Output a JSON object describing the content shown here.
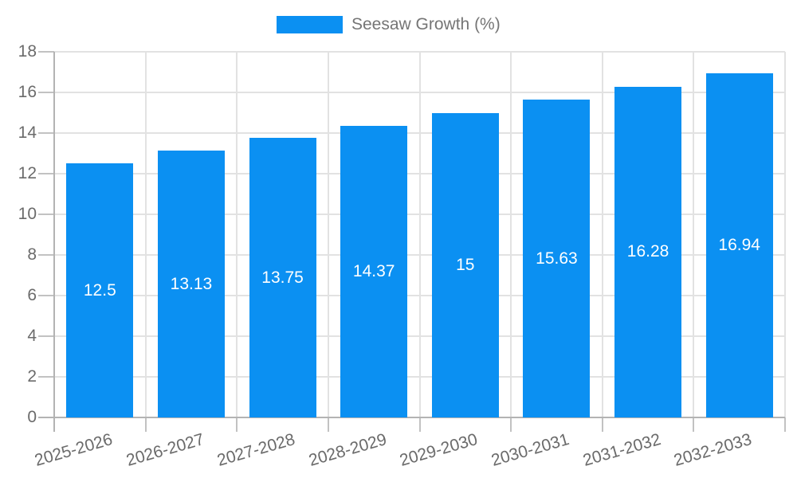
{
  "legend": {
    "label": "Seesaw Growth (%)"
  },
  "chart_data": {
    "type": "bar",
    "title": "",
    "xlabel": "",
    "ylabel": "",
    "categories": [
      "2025-2026",
      "2026-2027",
      "2027-2028",
      "2028-2029",
      "2029-2030",
      "2030-2031",
      "2031-2032",
      "2032-2033"
    ],
    "series": [
      {
        "name": "Seesaw Growth (%)",
        "values": [
          12.5,
          13.13,
          13.75,
          14.37,
          15,
          15.63,
          16.28,
          16.94
        ]
      }
    ],
    "value_labels": [
      "12.5",
      "13.13",
      "13.75",
      "14.37",
      "15",
      "15.63",
      "16.28",
      "16.94"
    ],
    "ylim": [
      0,
      18
    ],
    "ytick_step": 2,
    "ytick_labels": [
      "0",
      "2",
      "4",
      "6",
      "8",
      "10",
      "12",
      "14",
      "16",
      "18"
    ],
    "grid": true,
    "legend_position": "top-center",
    "bar_color": "#0b90f2",
    "grid_color": "#e2e2e2",
    "tick_color": "#c2c2c2",
    "axis_line_color": "#b3b3b3",
    "axis_text_color": "#6b6b6b",
    "legend_text_color": "#757575",
    "value_label_color": "#ffffff"
  }
}
